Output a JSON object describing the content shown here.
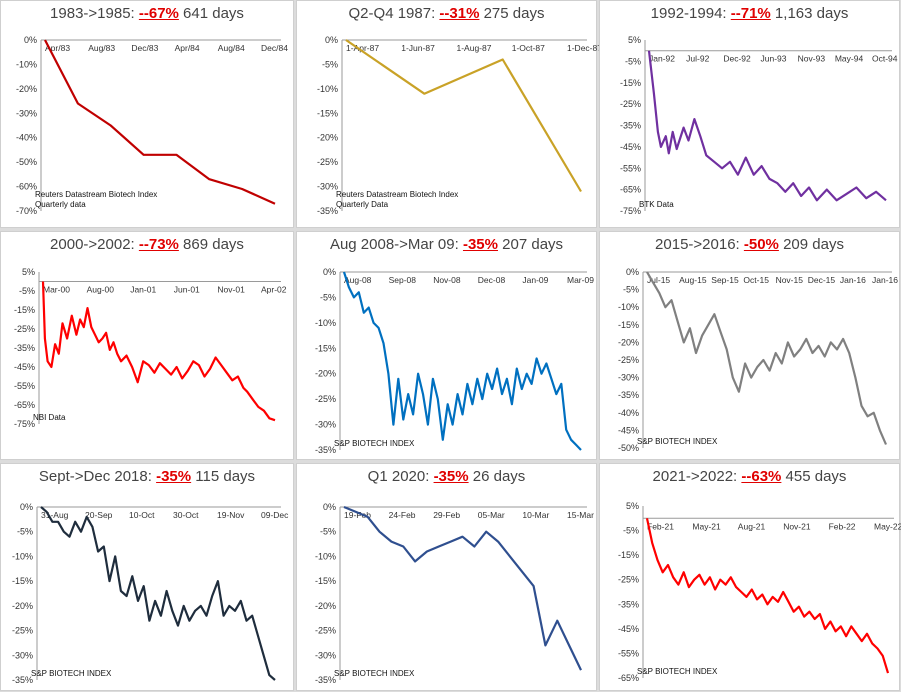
{
  "charts": [
    {
      "title_prefix": "1983->1985:  ",
      "title_pct": "--67%",
      "title_suffix": "  641 days",
      "note_lines": [
        "Reuters Datastream Biotech Index",
        "Quarterly data"
      ],
      "chart_data": {
        "type": "line",
        "color": "#c00000",
        "yticks": [
          "0%",
          "-10%",
          "-20%",
          "-30%",
          "-40%",
          "-50%",
          "-60%",
          "-70%"
        ],
        "ylim": [
          -70,
          0
        ],
        "xticks": [
          "Apr/83",
          "Aug/83",
          "Dec/83",
          "Apr/84",
          "Aug/84",
          "Dec/84"
        ],
        "x": [
          0,
          1,
          2,
          3,
          4,
          5,
          6,
          7
        ],
        "y": [
          0,
          -26,
          -35,
          -47,
          -47,
          -57,
          -61,
          -67
        ]
      }
    },
    {
      "title_prefix": "Q2-Q4 1987:  ",
      "title_pct": "--31%",
      "title_suffix": "  275 days",
      "note_lines": [
        "Reuters Datastream Biotech Index",
        "Quarterly Data"
      ],
      "chart_data": {
        "type": "line",
        "color": "#c9a227",
        "yticks": [
          "0%",
          "-5%",
          "-10%",
          "-15%",
          "-20%",
          "-25%",
          "-30%",
          "-35%"
        ],
        "ylim": [
          -35,
          0
        ],
        "xticks": [
          "1-Apr-87",
          "1-Jun-87",
          "1-Aug-87",
          "1-Oct-87",
          "1-Dec-87"
        ],
        "x": [
          0,
          1,
          2,
          3
        ],
        "y": [
          0,
          -11,
          -4,
          -31
        ]
      }
    },
    {
      "title_prefix": "1992-1994:  ",
      "title_pct": "--71%",
      "title_suffix": "  1,163 days",
      "note_lines": [
        "BTK Data"
      ],
      "chart_data": {
        "type": "line",
        "color": "#7030a0",
        "yticks": [
          "5%",
          "-5%",
          "-15%",
          "-25%",
          "-35%",
          "-45%",
          "-55%",
          "-65%",
          "-75%"
        ],
        "ylim": [
          -75,
          5
        ],
        "xticks": [
          "Jan-92",
          "Jul-92",
          "Dec-92",
          "Jun-93",
          "Nov-93",
          "May-94",
          "Oct-94"
        ],
        "x": [
          0,
          5,
          9,
          12,
          17,
          20,
          24,
          28,
          35,
          40,
          46,
          52,
          58,
          66,
          74,
          82,
          90,
          98,
          106,
          114,
          122,
          130,
          138,
          146,
          154,
          162,
          170,
          180,
          190,
          200,
          210,
          220,
          230,
          240
        ],
        "y": [
          0,
          -20,
          -38,
          -45,
          -40,
          -48,
          -38,
          -46,
          -36,
          -42,
          -32,
          -40,
          -49,
          -52,
          -55,
          -52,
          -58,
          -50,
          -58,
          -54,
          -60,
          -62,
          -66,
          -62,
          -68,
          -64,
          -70,
          -65,
          -70,
          -67,
          -64,
          -69,
          -66,
          -70
        ]
      }
    },
    {
      "title_prefix": "2000->2002:  ",
      "title_pct": "--73%",
      "title_suffix": "  869 days",
      "note_lines": [
        "NBI Data"
      ],
      "chart_data": {
        "type": "line",
        "color": "#ff0000",
        "yticks": [
          "5%",
          "-5%",
          "-15%",
          "-25%",
          "-35%",
          "-45%",
          "-55%",
          "-65%",
          "-75%"
        ],
        "ylim": [
          -75,
          5
        ],
        "xticks": [
          "Mar-00",
          "Aug-00",
          "Jan-01",
          "Jun-01",
          "Nov-01",
          "Apr-02"
        ],
        "x": [
          0,
          2,
          5,
          9,
          13,
          17,
          21,
          26,
          31,
          36,
          40,
          44,
          48,
          52,
          56,
          60,
          64,
          68,
          72,
          76,
          80,
          84,
          90,
          96,
          102,
          108,
          114,
          120,
          126,
          132,
          138,
          144,
          150,
          156,
          162,
          168,
          174,
          180,
          186,
          192,
          198,
          204,
          210,
          216,
          220,
          226,
          232,
          238,
          244,
          250
        ],
        "y": [
          0,
          -30,
          -42,
          -45,
          -33,
          -38,
          -22,
          -30,
          -18,
          -28,
          -20,
          -24,
          -14,
          -24,
          -28,
          -32,
          -30,
          -27,
          -36,
          -32,
          -38,
          -42,
          -39,
          -45,
          -53,
          -42,
          -44,
          -48,
          -43,
          -46,
          -49,
          -45,
          -51,
          -47,
          -42,
          -44,
          -50,
          -46,
          -40,
          -44,
          -48,
          -52,
          -50,
          -56,
          -58,
          -62,
          -66,
          -68,
          -72,
          -73
        ]
      }
    },
    {
      "title_prefix": "Aug 2008->Mar 09:  ",
      "title_pct": "-35%",
      "title_suffix": " 207 days",
      "note_lines": [
        "S&P BIOTECH INDEX"
      ],
      "chart_data": {
        "type": "line",
        "color": "#0070c0",
        "yticks": [
          "0%",
          "-5%",
          "-10%",
          "-15%",
          "-20%",
          "-25%",
          "-30%",
          "-35%"
        ],
        "ylim": [
          -35,
          0
        ],
        "xticks": [
          "Aug-08",
          "Sep-08",
          "Nov-08",
          "Dec-08",
          "Jan-09",
          "Mar-09"
        ],
        "x": [
          0,
          3,
          6,
          9,
          12,
          15,
          18,
          21,
          24,
          27,
          30,
          33,
          36,
          39,
          42,
          45,
          48,
          51,
          54,
          57,
          60,
          63,
          66,
          69,
          72,
          75,
          78,
          81,
          84,
          87,
          90,
          93,
          96,
          99,
          102,
          105,
          108,
          111,
          114,
          117,
          120,
          123,
          126,
          129,
          132,
          135,
          138,
          141,
          144
        ],
        "y": [
          0,
          -3,
          -5,
          -4,
          -8,
          -7,
          -10,
          -11,
          -14,
          -20,
          -30,
          -21,
          -29,
          -24,
          -28,
          -20,
          -24,
          -30,
          -21,
          -25,
          -33,
          -26,
          -30,
          -24,
          -28,
          -22,
          -26,
          -21,
          -25,
          -20,
          -23,
          -19,
          -24,
          -21,
          -26,
          -19,
          -23,
          -20,
          -22,
          -17,
          -20,
          -18,
          -21,
          -24,
          -22,
          -31,
          -33,
          -34,
          -35
        ]
      }
    },
    {
      "title_prefix": "2015->2016: ",
      "title_pct": "-50%",
      "title_suffix": "  209 days",
      "note_lines": [
        "S&P BIOTECH INDEX"
      ],
      "chart_data": {
        "type": "line",
        "color": "#808080",
        "yticks": [
          "0%",
          "-5%",
          "-10%",
          "-15%",
          "-20%",
          "-25%",
          "-30%",
          "-35%",
          "-40%",
          "-45%",
          "-50%"
        ],
        "ylim": [
          -50,
          0
        ],
        "xticks": [
          "Jul-15",
          "Aug-15",
          "Sep-15",
          "Oct-15",
          "Nov-15",
          "Dec-15",
          "Jan-16",
          "Jan-16"
        ],
        "x": [
          0,
          3,
          6,
          9,
          12,
          15,
          18,
          21,
          24,
          27,
          30,
          33,
          36,
          39,
          42,
          45,
          48,
          51,
          54,
          57,
          60,
          63,
          66,
          69,
          72,
          75,
          78,
          81,
          84,
          87,
          90,
          93,
          96,
          99,
          102,
          105,
          108,
          111,
          114,
          117
        ],
        "y": [
          0,
          -3,
          -6,
          -10,
          -8,
          -14,
          -20,
          -16,
          -23,
          -18,
          -15,
          -12,
          -17,
          -22,
          -30,
          -34,
          -26,
          -30,
          -27,
          -25,
          -28,
          -23,
          -26,
          -20,
          -24,
          -22,
          -19,
          -23,
          -21,
          -24,
          -20,
          -22,
          -19,
          -23,
          -30,
          -38,
          -41,
          -40,
          -45,
          -49
        ]
      }
    },
    {
      "title_prefix": "Sept->Dec 2018:  ",
      "title_pct": "-35%",
      "title_suffix": "  115 days",
      "note_lines": [
        "S&P BIOTECH INDEX"
      ],
      "chart_data": {
        "type": "line",
        "color": "#1f2d3d",
        "yticks": [
          "0%",
          "-5%",
          "-10%",
          "-15%",
          "-20%",
          "-25%",
          "-30%",
          "-35%"
        ],
        "ylim": [
          -35,
          0
        ],
        "xticks": [
          "31-Aug",
          "20-Sep",
          "10-Oct",
          "30-Oct",
          "19-Nov",
          "09-Dec"
        ],
        "x": [
          0,
          2,
          4,
          6,
          8,
          10,
          12,
          14,
          16,
          18,
          20,
          22,
          24,
          26,
          28,
          30,
          32,
          34,
          36,
          38,
          40,
          42,
          44,
          46,
          48,
          50,
          52,
          54,
          56,
          58,
          60,
          62,
          64,
          66,
          68,
          70,
          72,
          74,
          76,
          78,
          80,
          82
        ],
        "y": [
          0,
          -1,
          -3,
          -3,
          -5,
          -6,
          -3,
          -5,
          -2,
          -4,
          -9,
          -8,
          -15,
          -10,
          -17,
          -18,
          -14,
          -19,
          -16,
          -23,
          -19,
          -22,
          -17,
          -21,
          -24,
          -20,
          -23,
          -21,
          -20,
          -22,
          -18,
          -15,
          -22,
          -20,
          -21,
          -19,
          -23,
          -22,
          -26,
          -30,
          -34,
          -35
        ]
      }
    },
    {
      "title_prefix": "Q1 2020:  ",
      "title_pct": "-35%",
      "title_suffix": "  26 days",
      "note_lines": [
        "S&P BIOTECH INDEX"
      ],
      "chart_data": {
        "type": "line",
        "color": "#2f4f8f",
        "yticks": [
          "0%",
          "-5%",
          "-10%",
          "-15%",
          "-20%",
          "-25%",
          "-30%",
          "-35%"
        ],
        "ylim": [
          -35,
          0
        ],
        "xticks": [
          "19-Feb",
          "24-Feb",
          "29-Feb",
          "05-Mar",
          "10-Mar",
          "15-Mar"
        ],
        "x": [
          0,
          1,
          2,
          3,
          4,
          5,
          6,
          7,
          8,
          9,
          10,
          11,
          12,
          13,
          14,
          15,
          16,
          17,
          18,
          19,
          20
        ],
        "y": [
          0,
          -1,
          -2,
          -5,
          -7,
          -8,
          -11,
          -9,
          -8,
          -7,
          -6,
          -8,
          -5,
          -7,
          -10,
          -13,
          -16,
          -28,
          -23,
          -28,
          -33
        ]
      }
    },
    {
      "title_prefix": "2021->2022:  ",
      "title_pct": "--63%",
      "title_suffix": "  455 days",
      "note_lines": [
        "S&P BIOTECH INDEX"
      ],
      "chart_data": {
        "type": "line",
        "color": "#ff0000",
        "yticks": [
          "5%",
          "-5%",
          "-15%",
          "-25%",
          "-35%",
          "-45%",
          "-55%",
          "-65%"
        ],
        "ylim": [
          -65,
          5
        ],
        "xticks": [
          "Feb-21",
          "May-21",
          "Aug-21",
          "Nov-21",
          "Feb-22",
          "May-22"
        ],
        "x": [
          0,
          4,
          8,
          12,
          16,
          20,
          24,
          28,
          32,
          36,
          40,
          44,
          48,
          52,
          56,
          60,
          64,
          68,
          72,
          76,
          80,
          84,
          88,
          92,
          96,
          100,
          104,
          108,
          112,
          116,
          120,
          124,
          128,
          132,
          136,
          140,
          144,
          148,
          152,
          156,
          160,
          164,
          168,
          172,
          176,
          180,
          184
        ],
        "y": [
          0,
          -10,
          -17,
          -22,
          -19,
          -24,
          -27,
          -22,
          -28,
          -25,
          -23,
          -27,
          -24,
          -29,
          -25,
          -27,
          -24,
          -28,
          -30,
          -32,
          -29,
          -33,
          -31,
          -35,
          -32,
          -34,
          -30,
          -34,
          -38,
          -36,
          -40,
          -38,
          -41,
          -39,
          -45,
          -42,
          -46,
          -44,
          -48,
          -44,
          -47,
          -50,
          -47,
          -51,
          -53,
          -56,
          -63
        ]
      }
    }
  ]
}
